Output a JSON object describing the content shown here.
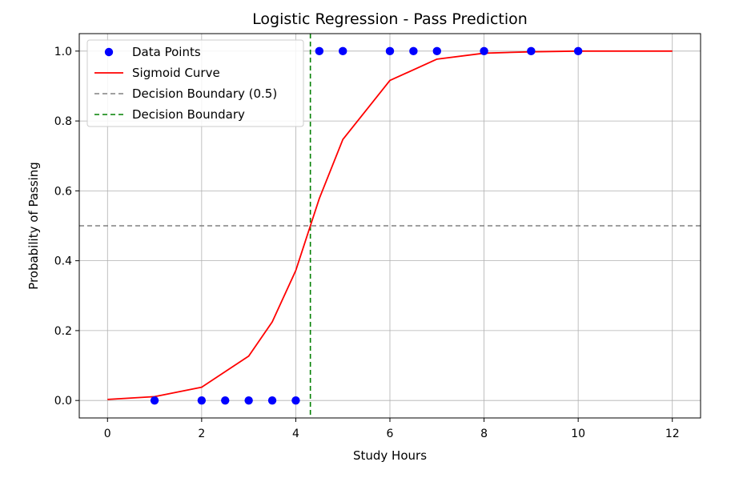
{
  "chart_data": {
    "type": "scatter",
    "title": "Logistic Regression - Pass Prediction",
    "xlabel": "Study Hours",
    "ylabel": "Probability of Passing",
    "xlim": [
      -0.6,
      12.6
    ],
    "ylim": [
      -0.05,
      1.05
    ],
    "xticks": [
      0,
      2,
      4,
      6,
      8,
      10,
      12
    ],
    "yticks": [
      0.0,
      0.2,
      0.4,
      0.6,
      0.8,
      1.0
    ],
    "xtick_labels": [
      "0",
      "2",
      "4",
      "6",
      "8",
      "10",
      "12"
    ],
    "ytick_labels": [
      "0.0",
      "0.2",
      "0.4",
      "0.6",
      "0.8",
      "1.0"
    ],
    "grid": true,
    "legend_position": "top-left",
    "series": [
      {
        "name": "Data Points",
        "kind": "scatter",
        "color": "#0000ff",
        "x": [
          1,
          2,
          2.5,
          3,
          3.5,
          4,
          4.5,
          5,
          6,
          6.5,
          7,
          8,
          9,
          10
        ],
        "y": [
          0,
          0,
          0,
          0,
          0,
          0,
          1,
          1,
          1,
          1,
          1,
          1,
          1,
          1
        ]
      },
      {
        "name": "Sigmoid Curve",
        "kind": "line",
        "color": "#ff0000",
        "x": [
          0,
          1,
          2,
          3,
          3.5,
          4,
          4.31,
          4.5,
          5,
          6,
          7,
          8,
          9,
          10,
          11,
          12
        ],
        "y": [
          0.003,
          0.011,
          0.038,
          0.127,
          0.225,
          0.372,
          0.5,
          0.578,
          0.747,
          0.916,
          0.977,
          0.994,
          0.998,
          1.0,
          1.0,
          1.0
        ]
      },
      {
        "name": "Decision Boundary (0.5)",
        "kind": "hline",
        "color": "#808080",
        "y": 0.5
      },
      {
        "name": "Decision Boundary",
        "kind": "vline",
        "color": "#008000",
        "x": 4.31
      }
    ]
  }
}
